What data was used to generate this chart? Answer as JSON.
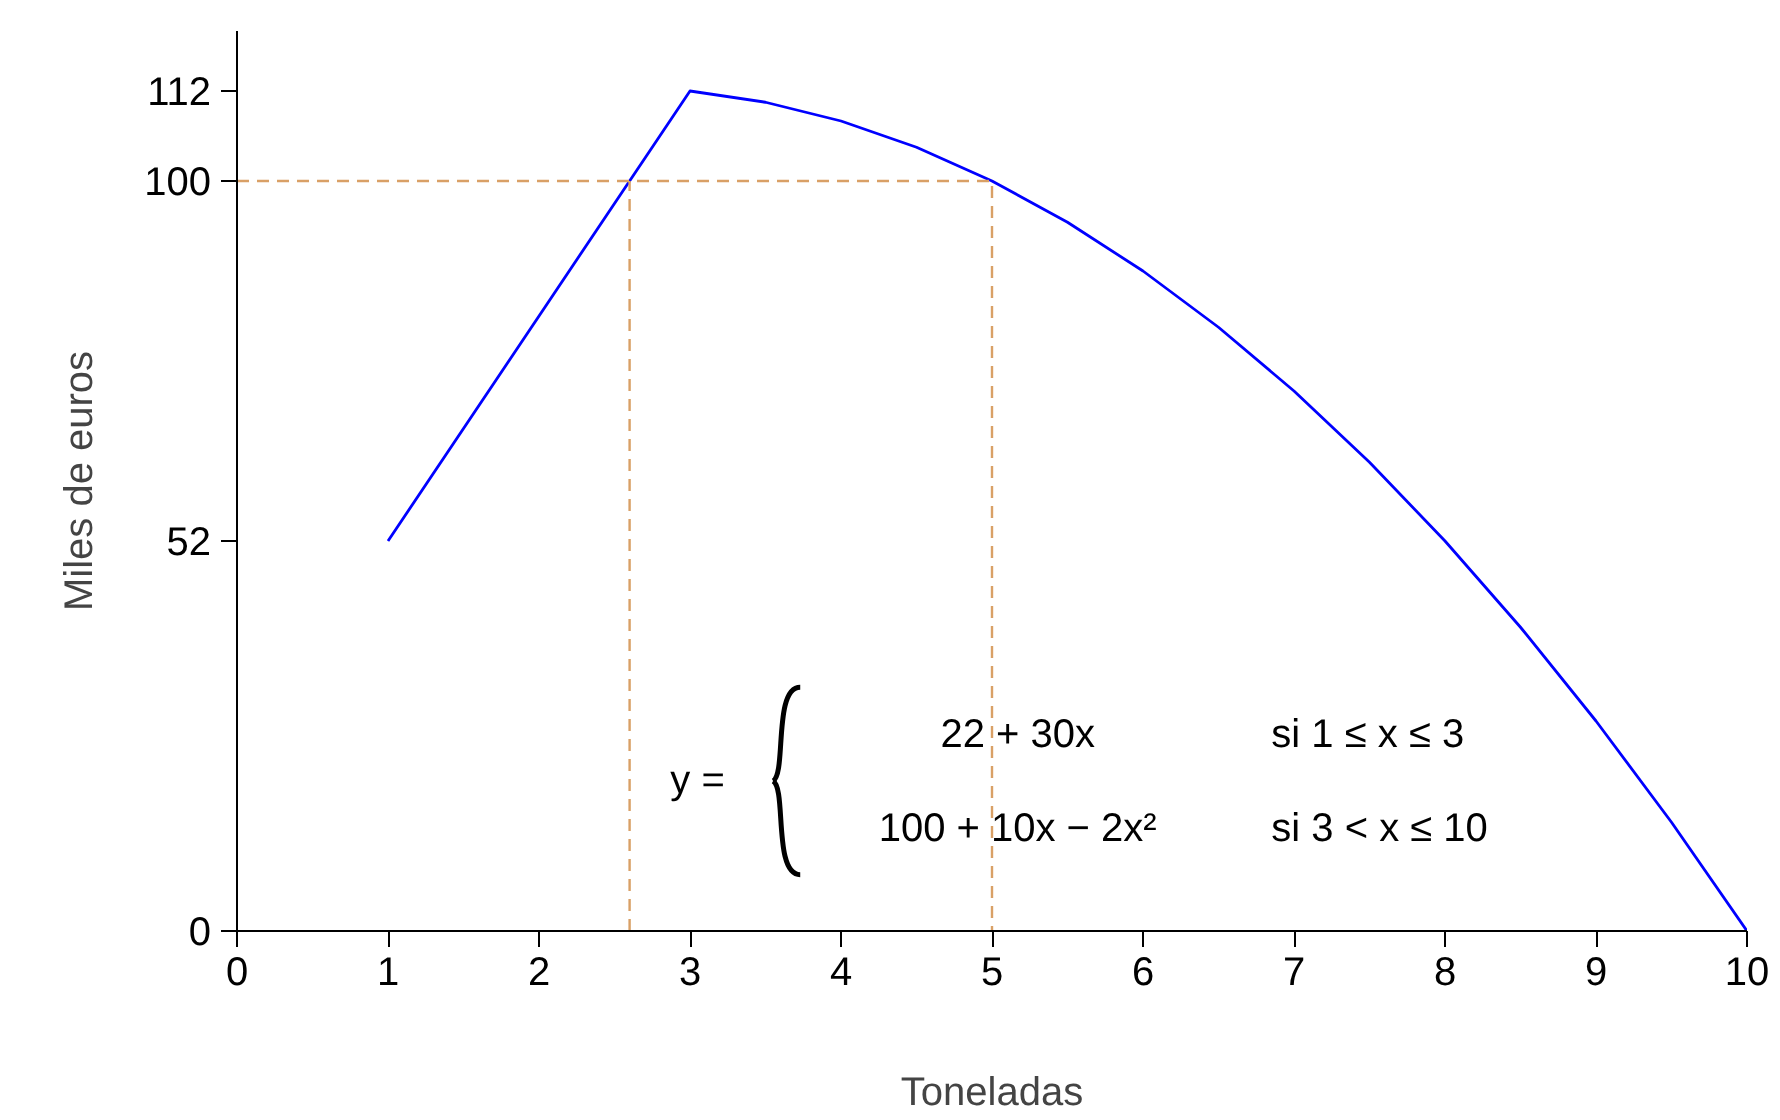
{
  "chart_data": {
    "type": "line",
    "xlabel": "Toneladas",
    "ylabel": "Miles de euros",
    "xlim": [
      0,
      10
    ],
    "ylim": [
      0,
      120
    ],
    "xticks": [
      0,
      1,
      2,
      3,
      4,
      5,
      6,
      7,
      8,
      9,
      10
    ],
    "yticks": [
      0,
      52,
      100,
      112
    ],
    "grid": false,
    "series": [
      {
        "color": "#0000ff",
        "line_style": "solid",
        "x": [
          1,
          3,
          3.5,
          4,
          4.5,
          5,
          5.5,
          6,
          6.5,
          7,
          7.5,
          8,
          8.5,
          9,
          9.5,
          10
        ],
        "values": [
          52,
          112,
          110.5,
          108,
          104.5,
          100,
          94.5,
          88,
          80.5,
          72,
          62.5,
          52,
          40.5,
          28,
          14.5,
          0
        ]
      },
      {
        "color": "#d9a066",
        "line_style": "dashed",
        "x": [
          2.6,
          2.6
        ],
        "values": [
          0,
          100
        ]
      },
      {
        "color": "#d9a066",
        "line_style": "dashed",
        "x": [
          0,
          5,
          5
        ],
        "values": [
          100,
          100,
          0
        ]
      }
    ],
    "annotations": [
      "y =",
      "22 + 30x",
      "si 1 ≤ x ≤ 3",
      "100 + 10x − 2x²",
      "si 3 < x ≤ 10"
    ]
  }
}
